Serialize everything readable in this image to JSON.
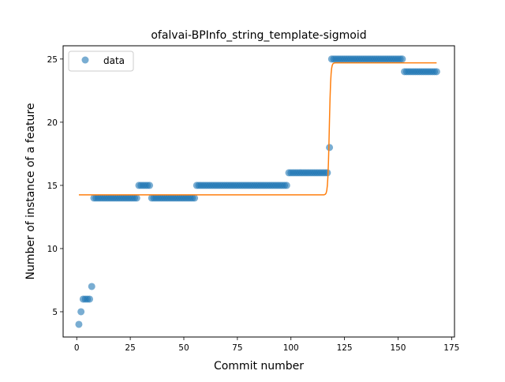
{
  "chart_data": {
    "type": "scatter",
    "title": "ofalvai-BPInfo_string_template-sigmoid",
    "xlabel": "Commit number",
    "ylabel": "Number of instance of a feature",
    "xlim": [
      -6.35,
      176.35
    ],
    "ylim": [
      3.0,
      26.05
    ],
    "xticks": [
      0,
      25,
      50,
      75,
      100,
      125,
      150,
      175
    ],
    "yticks": [
      5,
      10,
      15,
      20,
      25
    ],
    "grid": false,
    "legend": {
      "placement": "top-left",
      "entries": [
        {
          "label": "data",
          "color": "#1f77b4",
          "marker": "circle"
        }
      ]
    },
    "colors": {
      "data": "#1f77b4",
      "fit": "#ff7f0e"
    },
    "series": [
      {
        "name": "data",
        "kind": "scatter",
        "segments": [
          {
            "from": 1,
            "to": 1,
            "y": 4
          },
          {
            "from": 2,
            "to": 2,
            "y": 5
          },
          {
            "from": 3,
            "to": 6,
            "y": 6
          },
          {
            "from": 7,
            "to": 7,
            "y": 7
          },
          {
            "from": 8,
            "to": 28,
            "y": 14
          },
          {
            "from": 29,
            "to": 34,
            "y": 15
          },
          {
            "from": 35,
            "to": 55,
            "y": 14
          },
          {
            "from": 56,
            "to": 98,
            "y": 15
          },
          {
            "from": 99,
            "to": 117,
            "y": 16
          },
          {
            "from": 118,
            "to": 118,
            "y": 18
          },
          {
            "from": 119,
            "to": 152,
            "y": 25
          },
          {
            "from": 153,
            "to": 168,
            "y": 24
          }
        ]
      },
      {
        "kind": "line",
        "fit": {
          "model": "sigmoid",
          "x_from": 1,
          "x_to": 168,
          "low": 14.25,
          "high": 24.7,
          "midpoint": 117.9,
          "scale": 0.35
        }
      }
    ]
  }
}
